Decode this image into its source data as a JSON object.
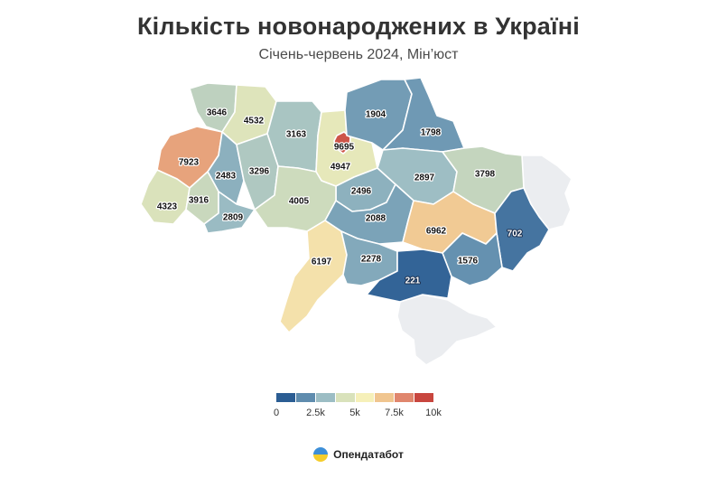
{
  "header": {
    "title": "Кількість новонароджених в Україні",
    "subtitle": "Січень-червень 2024, Мін’юст"
  },
  "legend": {
    "colors": [
      "#2b5d93",
      "#5f8cae",
      "#9cbdc4",
      "#d9e2bb",
      "#f6f0b9",
      "#f0c58f",
      "#e0866d",
      "#c8463e"
    ],
    "ticks": [
      "0",
      "2.5k",
      "5k",
      "7.5k",
      "10k"
    ],
    "min": 0,
    "max": 10000
  },
  "regions": [
    {
      "id": "volyn",
      "value": 3646
    },
    {
      "id": "rivne",
      "value": 4532
    },
    {
      "id": "zhytomyr",
      "value": 3163
    },
    {
      "id": "kyiv-oblast",
      "value": 4947
    },
    {
      "id": "kyiv-city",
      "value": 9695
    },
    {
      "id": "chernihiv",
      "value": 1904
    },
    {
      "id": "sumy",
      "value": 1798
    },
    {
      "id": "lviv",
      "value": 7923
    },
    {
      "id": "ternopil",
      "value": 2483
    },
    {
      "id": "khmelnytskyi",
      "value": 3296
    },
    {
      "id": "cherkasy",
      "value": 2496
    },
    {
      "id": "poltava",
      "value": 2897
    },
    {
      "id": "kharkiv",
      "value": 3798
    },
    {
      "id": "zakarpattia",
      "value": 4323
    },
    {
      "id": "ivano-frankivsk",
      "value": 3916
    },
    {
      "id": "chernivtsi",
      "value": 2809
    },
    {
      "id": "vinnytsia",
      "value": 4005
    },
    {
      "id": "kirovohrad",
      "value": 2088
    },
    {
      "id": "dnipropetrovsk",
      "value": 6962
    },
    {
      "id": "donetsk",
      "value": 702
    },
    {
      "id": "odesa",
      "value": 6197
    },
    {
      "id": "mykolaiv",
      "value": 2278
    },
    {
      "id": "zaporizhzhia",
      "value": 1576
    },
    {
      "id": "kherson",
      "value": 221
    }
  ],
  "no_data_color": "#ebedf0",
  "brand": {
    "name": "Опендатабот"
  }
}
